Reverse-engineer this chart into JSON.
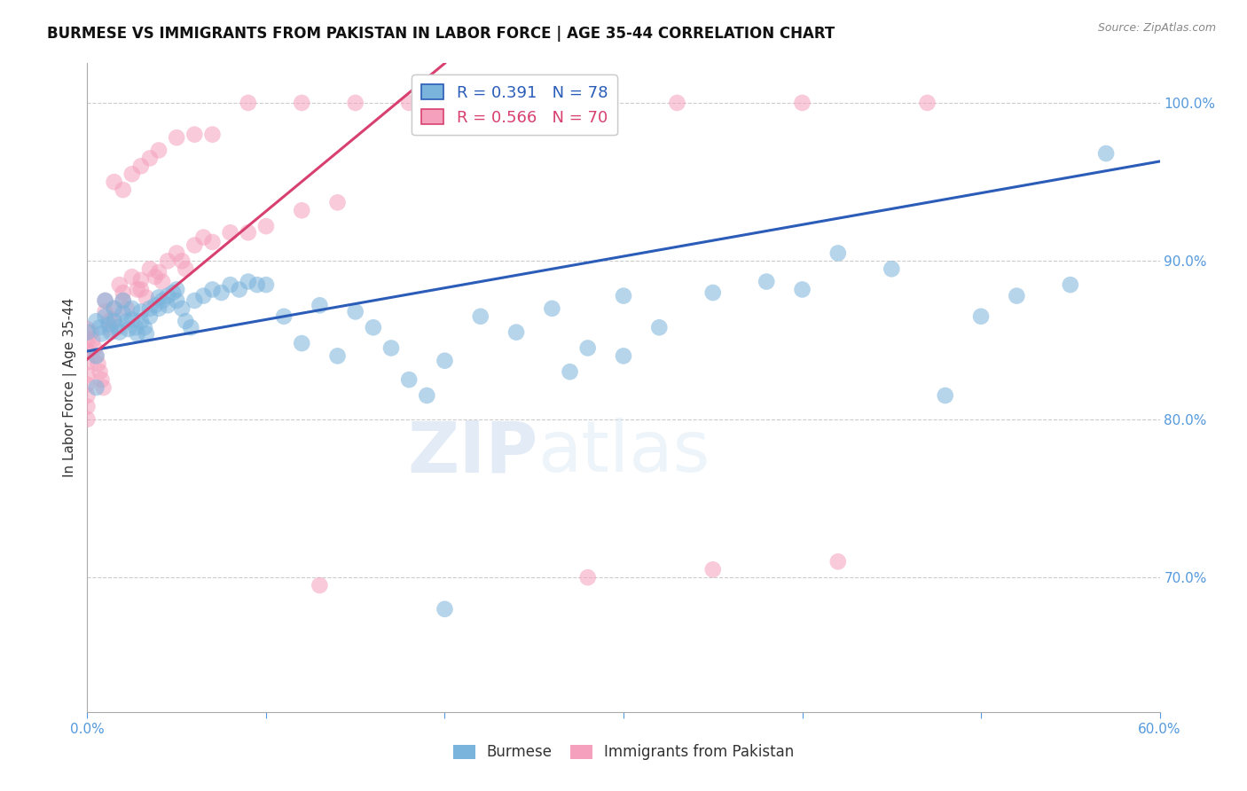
{
  "title": "BURMESE VS IMMIGRANTS FROM PAKISTAN IN LABOR FORCE | AGE 35-44 CORRELATION CHART",
  "source": "Source: ZipAtlas.com",
  "ylabel": "In Labor Force | Age 35-44",
  "xlim": [
    0.0,
    0.6
  ],
  "ylim": [
    0.615,
    1.025
  ],
  "yticks": [
    0.7,
    0.8,
    0.9,
    1.0
  ],
  "ytick_labels": [
    "70.0%",
    "80.0%",
    "90.0%",
    "100.0%"
  ],
  "xticks": [
    0.0,
    0.1,
    0.2,
    0.3,
    0.4,
    0.5,
    0.6
  ],
  "xtick_labels": [
    "0.0%",
    "",
    "",
    "",
    "",
    "",
    "60.0%"
  ],
  "burmese_color": "#7ab4dc",
  "pakistan_color": "#f5a0bc",
  "line_blue": "#2a5cb8",
  "line_pink": "#d84070",
  "legend_blue_r": "0.391",
  "legend_blue_n": "78",
  "legend_pink_r": "0.566",
  "legend_pink_n": "70",
  "legend_label_blue": "Burmese",
  "legend_label_pink": "Immigrants from Pakistan",
  "watermark": "ZIPatlas",
  "title_fontsize": 12,
  "axis_color": "#5599dd",
  "grid_color": "#cccccc",
  "burmese_x": [
    0.0,
    0.005,
    0.007,
    0.008,
    0.01,
    0.01,
    0.012,
    0.013,
    0.015,
    0.015,
    0.017,
    0.018,
    0.02,
    0.02,
    0.022,
    0.023,
    0.025,
    0.025,
    0.027,
    0.028,
    0.03,
    0.03,
    0.032,
    0.033,
    0.035,
    0.035,
    0.038,
    0.04,
    0.04,
    0.042,
    0.045,
    0.045,
    0.048,
    0.05,
    0.05,
    0.053,
    0.055,
    0.058,
    0.06,
    0.065,
    0.07,
    0.075,
    0.08,
    0.085,
    0.09,
    0.095,
    0.1,
    0.11,
    0.12,
    0.13,
    0.14,
    0.15,
    0.16,
    0.17,
    0.18,
    0.19,
    0.2,
    0.22,
    0.24,
    0.26,
    0.28,
    0.3,
    0.32,
    0.35,
    0.38,
    0.4,
    0.42,
    0.45,
    0.48,
    0.5,
    0.52,
    0.55,
    0.57,
    0.3,
    0.27,
    0.2,
    0.005,
    0.005
  ],
  "burmese_y": [
    0.855,
    0.862,
    0.858,
    0.854,
    0.875,
    0.865,
    0.86,
    0.855,
    0.87,
    0.862,
    0.858,
    0.855,
    0.875,
    0.867,
    0.862,
    0.857,
    0.87,
    0.863,
    0.858,
    0.854,
    0.868,
    0.862,
    0.858,
    0.854,
    0.87,
    0.865,
    0.872,
    0.877,
    0.87,
    0.875,
    0.878,
    0.872,
    0.88,
    0.882,
    0.875,
    0.87,
    0.862,
    0.858,
    0.875,
    0.878,
    0.882,
    0.88,
    0.885,
    0.882,
    0.887,
    0.885,
    0.885,
    0.865,
    0.848,
    0.872,
    0.84,
    0.868,
    0.858,
    0.845,
    0.825,
    0.815,
    0.837,
    0.865,
    0.855,
    0.87,
    0.845,
    0.878,
    0.858,
    0.88,
    0.887,
    0.882,
    0.905,
    0.895,
    0.815,
    0.865,
    0.878,
    0.885,
    0.968,
    0.84,
    0.83,
    0.68,
    0.82,
    0.84
  ],
  "pakistan_x": [
    0.0,
    0.0,
    0.0,
    0.0,
    0.0,
    0.0,
    0.0,
    0.0,
    0.0,
    0.002,
    0.003,
    0.004,
    0.005,
    0.006,
    0.007,
    0.008,
    0.009,
    0.01,
    0.01,
    0.012,
    0.013,
    0.015,
    0.015,
    0.018,
    0.02,
    0.02,
    0.022,
    0.025,
    0.028,
    0.03,
    0.03,
    0.033,
    0.035,
    0.038,
    0.04,
    0.042,
    0.045,
    0.05,
    0.053,
    0.055,
    0.06,
    0.065,
    0.07,
    0.08,
    0.09,
    0.1,
    0.12,
    0.14,
    0.015,
    0.02,
    0.025,
    0.03,
    0.035,
    0.04,
    0.05,
    0.06,
    0.07,
    0.09,
    0.12,
    0.15,
    0.18,
    0.22,
    0.27,
    0.33,
    0.4,
    0.47,
    0.13,
    0.28,
    0.35,
    0.42
  ],
  "pakistan_y": [
    0.857,
    0.85,
    0.843,
    0.836,
    0.828,
    0.822,
    0.815,
    0.808,
    0.8,
    0.855,
    0.85,
    0.845,
    0.84,
    0.835,
    0.83,
    0.825,
    0.82,
    0.875,
    0.868,
    0.862,
    0.857,
    0.87,
    0.863,
    0.885,
    0.88,
    0.875,
    0.87,
    0.89,
    0.882,
    0.888,
    0.882,
    0.877,
    0.895,
    0.89,
    0.893,
    0.887,
    0.9,
    0.905,
    0.9,
    0.895,
    0.91,
    0.915,
    0.912,
    0.918,
    0.918,
    0.922,
    0.932,
    0.937,
    0.95,
    0.945,
    0.955,
    0.96,
    0.965,
    0.97,
    0.978,
    0.98,
    0.98,
    1.0,
    1.0,
    1.0,
    1.0,
    1.0,
    1.0,
    1.0,
    1.0,
    1.0,
    0.695,
    0.7,
    0.705,
    0.71
  ],
  "blue_line_x": [
    0.0,
    0.6
  ],
  "blue_line_y": [
    0.843,
    0.963
  ],
  "pink_line_x": [
    0.0,
    0.2
  ],
  "pink_line_y": [
    0.838,
    1.025
  ]
}
